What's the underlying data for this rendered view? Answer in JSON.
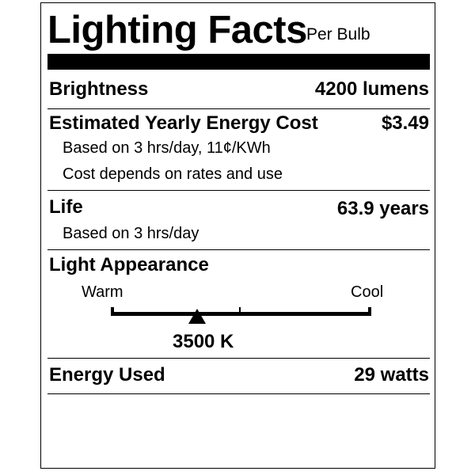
{
  "header": {
    "title": "Lighting Facts",
    "subtitle": "Per Bulb"
  },
  "brightness": {
    "label": "Brightness",
    "value": "4200 lumens"
  },
  "energy_cost": {
    "label": "Estimated Yearly Energy Cost",
    "value": "$3.49",
    "notes": [
      "Based on 3 hrs/day, 11¢/KWh",
      "Cost depends on rates and use"
    ]
  },
  "life": {
    "label": "Life",
    "value": "63.9 years",
    "note": "Based on 3 hrs/day"
  },
  "appearance": {
    "label": "Light Appearance",
    "warm_label": "Warm",
    "cool_label": "Cool",
    "value": "3500 K",
    "marker_position": 0.33
  },
  "energy_used": {
    "label": "Energy Used",
    "value": "29 watts"
  }
}
